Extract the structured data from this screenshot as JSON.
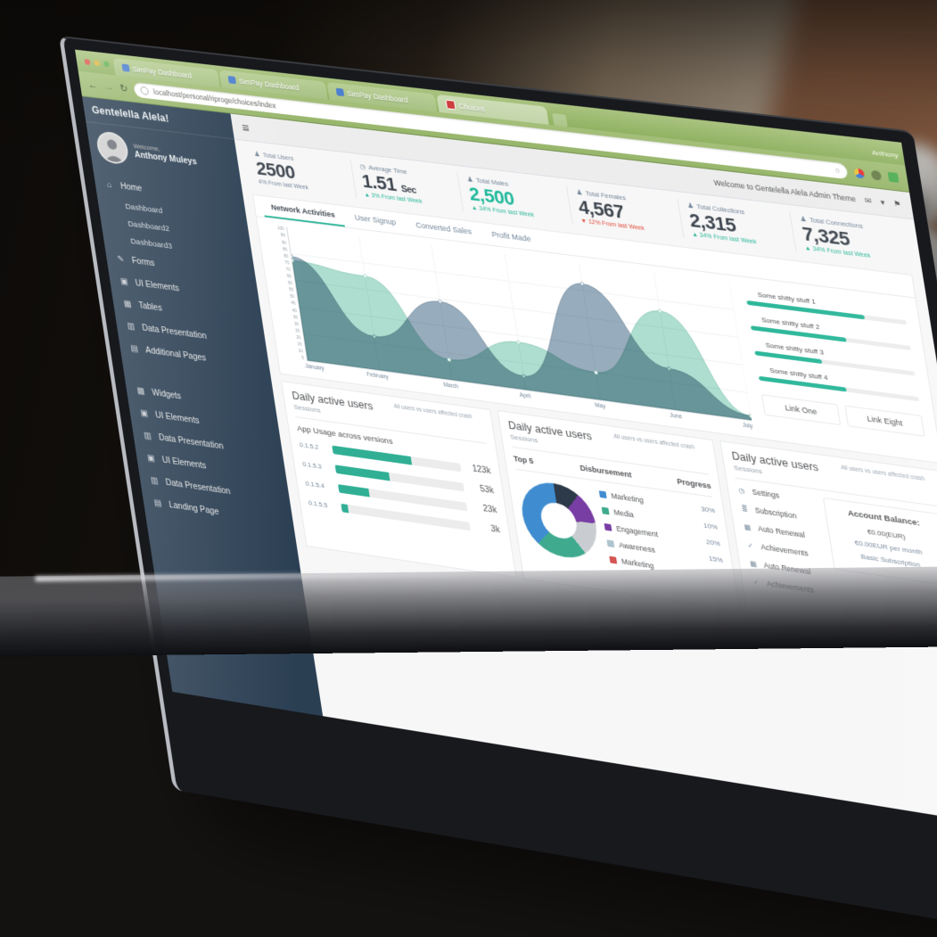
{
  "browser": {
    "window_buttons": [
      "close",
      "minimize",
      "zoom"
    ],
    "tabs": [
      {
        "label": "SimPay Dashboard",
        "favicon": "document-icon"
      },
      {
        "label": "SimPay Dashboard",
        "favicon": "document-icon"
      },
      {
        "label": "SimPay Dashboard",
        "favicon": "document-icon"
      },
      {
        "label": "Choices",
        "favicon": "choices-icon"
      }
    ],
    "profile_name": "Anthony",
    "url": "localhost/personal/riproge/choices/index",
    "back_icon": "←",
    "forward_icon": "→",
    "refresh_icon": "↻",
    "search_icon": "🔍"
  },
  "sidebar": {
    "logo": "Gentelella Alela!",
    "profile": {
      "welcome": "Welcome,",
      "name": "Anthony Muleys"
    },
    "menu": [
      {
        "icon": "⌂",
        "label": "Home"
      },
      {
        "icon": "✎",
        "label": "Forms"
      },
      {
        "icon": "▣",
        "label": "UI Elements"
      },
      {
        "icon": "▦",
        "label": "Tables"
      },
      {
        "icon": "▥",
        "label": "Data Presentation"
      },
      {
        "icon": "▤",
        "label": "Additional Pages"
      }
    ],
    "home_children": [
      "Dashboard",
      "Dashboard2",
      "Dashboard3"
    ],
    "menu2": [
      {
        "icon": "▩",
        "label": "Widgets"
      },
      {
        "icon": "▣",
        "label": "UI Elements"
      },
      {
        "icon": "▥",
        "label": "Data Presentation"
      },
      {
        "icon": "▣",
        "label": "UI Elements"
      },
      {
        "icon": "▥",
        "label": "Data Presentation"
      },
      {
        "icon": "▤",
        "label": "Landing Page"
      }
    ]
  },
  "topnav": {
    "hamburger": "≡",
    "welcome": "Welcome to Gentelella Alela Admin Theme",
    "mail_icon": "✉",
    "caret_icon": "▾",
    "bell_icon": "⚑"
  },
  "stats": [
    {
      "icon": "person-icon",
      "glyph": "♟",
      "label": "Total Users",
      "value": "2500",
      "unit": "",
      "trend_icon": "",
      "delta": "4% From last Week",
      "trend": "flat"
    },
    {
      "icon": "clock-icon",
      "glyph": "◷",
      "label": "Average Time",
      "value": "1.51",
      "unit": "Sec",
      "trend_icon": "▲",
      "delta": "3% From last Week",
      "trend": "up"
    },
    {
      "icon": "person-icon",
      "glyph": "♟",
      "label": "Total Males",
      "value": "2,500",
      "unit": "",
      "trend_icon": "▲",
      "delta": "34% From last Week",
      "trend": "up"
    },
    {
      "icon": "person-icon",
      "glyph": "♟",
      "label": "Total Females",
      "value": "4,567",
      "unit": "",
      "trend_icon": "▼",
      "delta": "12% From last Week",
      "trend": "down"
    },
    {
      "icon": "person-icon",
      "glyph": "♟",
      "label": "Total Collections",
      "value": "2,315",
      "unit": "",
      "trend_icon": "▲",
      "delta": "34% From last Week",
      "trend": "up"
    },
    {
      "icon": "person-icon",
      "glyph": "♟",
      "label": "Total Connections",
      "value": "7,325",
      "unit": "",
      "trend_icon": "▲",
      "delta": "34% From last Week",
      "trend": "up"
    }
  ],
  "chart_panel": {
    "tabs": [
      {
        "label": "Network Activities"
      },
      {
        "label": "User Signup"
      },
      {
        "label": "Converted Sales"
      },
      {
        "label": "Profit Made"
      }
    ],
    "legend": [
      {
        "label": "Some shitty stuff 1",
        "pct": 74
      },
      {
        "label": "Some shitty stuff 2",
        "pct": 60
      },
      {
        "label": "Some shitty stuff 3",
        "pct": 42
      },
      {
        "label": "Some shitty stuff 4",
        "pct": 55
      }
    ],
    "buttons": [
      "Link One",
      "Link Eight"
    ]
  },
  "chart_data": [
    {
      "type": "area",
      "title": "Network Activities",
      "x": [
        "January",
        "February",
        "March",
        "April",
        "May",
        "June",
        "July"
      ],
      "series": [
        {
          "name": "slate-series",
          "color": "#8BA3B6",
          "stroke": "#7E95A9",
          "values": [
            78,
            25,
            58,
            10,
            85,
            30,
            3
          ]
        },
        {
          "name": "mint-series",
          "color": "#A3DCCB",
          "stroke": "#8FCDBB",
          "values": [
            75,
            70,
            15,
            35,
            20,
            72,
            3
          ]
        }
      ],
      "ylim": [
        0,
        100
      ],
      "ytick_step": 5,
      "grid": true,
      "legend_position": "right-panel"
    },
    {
      "type": "pie",
      "title": "Disbursement",
      "labels": [
        "Marketing",
        "Media",
        "Engagement",
        "Awareness",
        "Marketing"
      ],
      "colors": [
        "#3C8DD4",
        "#3BAB8E",
        "#7A3DA8",
        "#AEC4CE",
        "#D9534F"
      ],
      "progress": [
        "30%",
        "10%",
        "20%",
        "15%",
        ""
      ],
      "slices": [
        {
          "color": "#2C3A4A",
          "pct": 11
        },
        {
          "color": "#7A3DA8",
          "pct": 13
        },
        {
          "color": "#C9CDD1",
          "pct": 16
        },
        {
          "color": "#3BAB8E",
          "pct": 22
        },
        {
          "color": "#3C8DD4",
          "pct": 38
        }
      ]
    },
    {
      "type": "bar",
      "orientation": "horizontal",
      "title": "App Usage across versions",
      "categories": [
        "0.1.5.2",
        "0.1.5.3",
        "0.1.5.4",
        "0.1.5.5"
      ],
      "values": [
        "123k",
        "53k",
        "23k",
        "3k"
      ],
      "bar_fill_pct": [
        62,
        42,
        24,
        5
      ]
    }
  ],
  "panels": {
    "shared_title": "Daily active users",
    "shared_sub": "Sessions",
    "shared_note": "All users vs users affected crash",
    "table_headers": [
      "Top 5",
      "Disbursement",
      "Progress"
    ],
    "settings": [
      {
        "icon": "◷",
        "label": "Settings"
      },
      {
        "icon": "≣",
        "label": "Subscription"
      },
      {
        "icon": "▦",
        "label": "Auto Renewal"
      },
      {
        "icon": "✓",
        "label": "Achievements"
      },
      {
        "icon": "▦",
        "label": "Auto Renewal"
      },
      {
        "icon": "✓",
        "label": "Achievements"
      }
    ],
    "balance": {
      "title": "Account Balance:",
      "line1": "€0.00(EUR)",
      "line2": "€0.00EUR per month",
      "line3": "Basic Subscription"
    }
  },
  "colors": {
    "accent_green": "#26B99A",
    "sidebar_navy": "#2A3F54",
    "browser_green": "#8FB35F",
    "panel_border": "#E6E9ED",
    "delta_up": "#26B99A",
    "delta_down": "#E74C3C"
  }
}
